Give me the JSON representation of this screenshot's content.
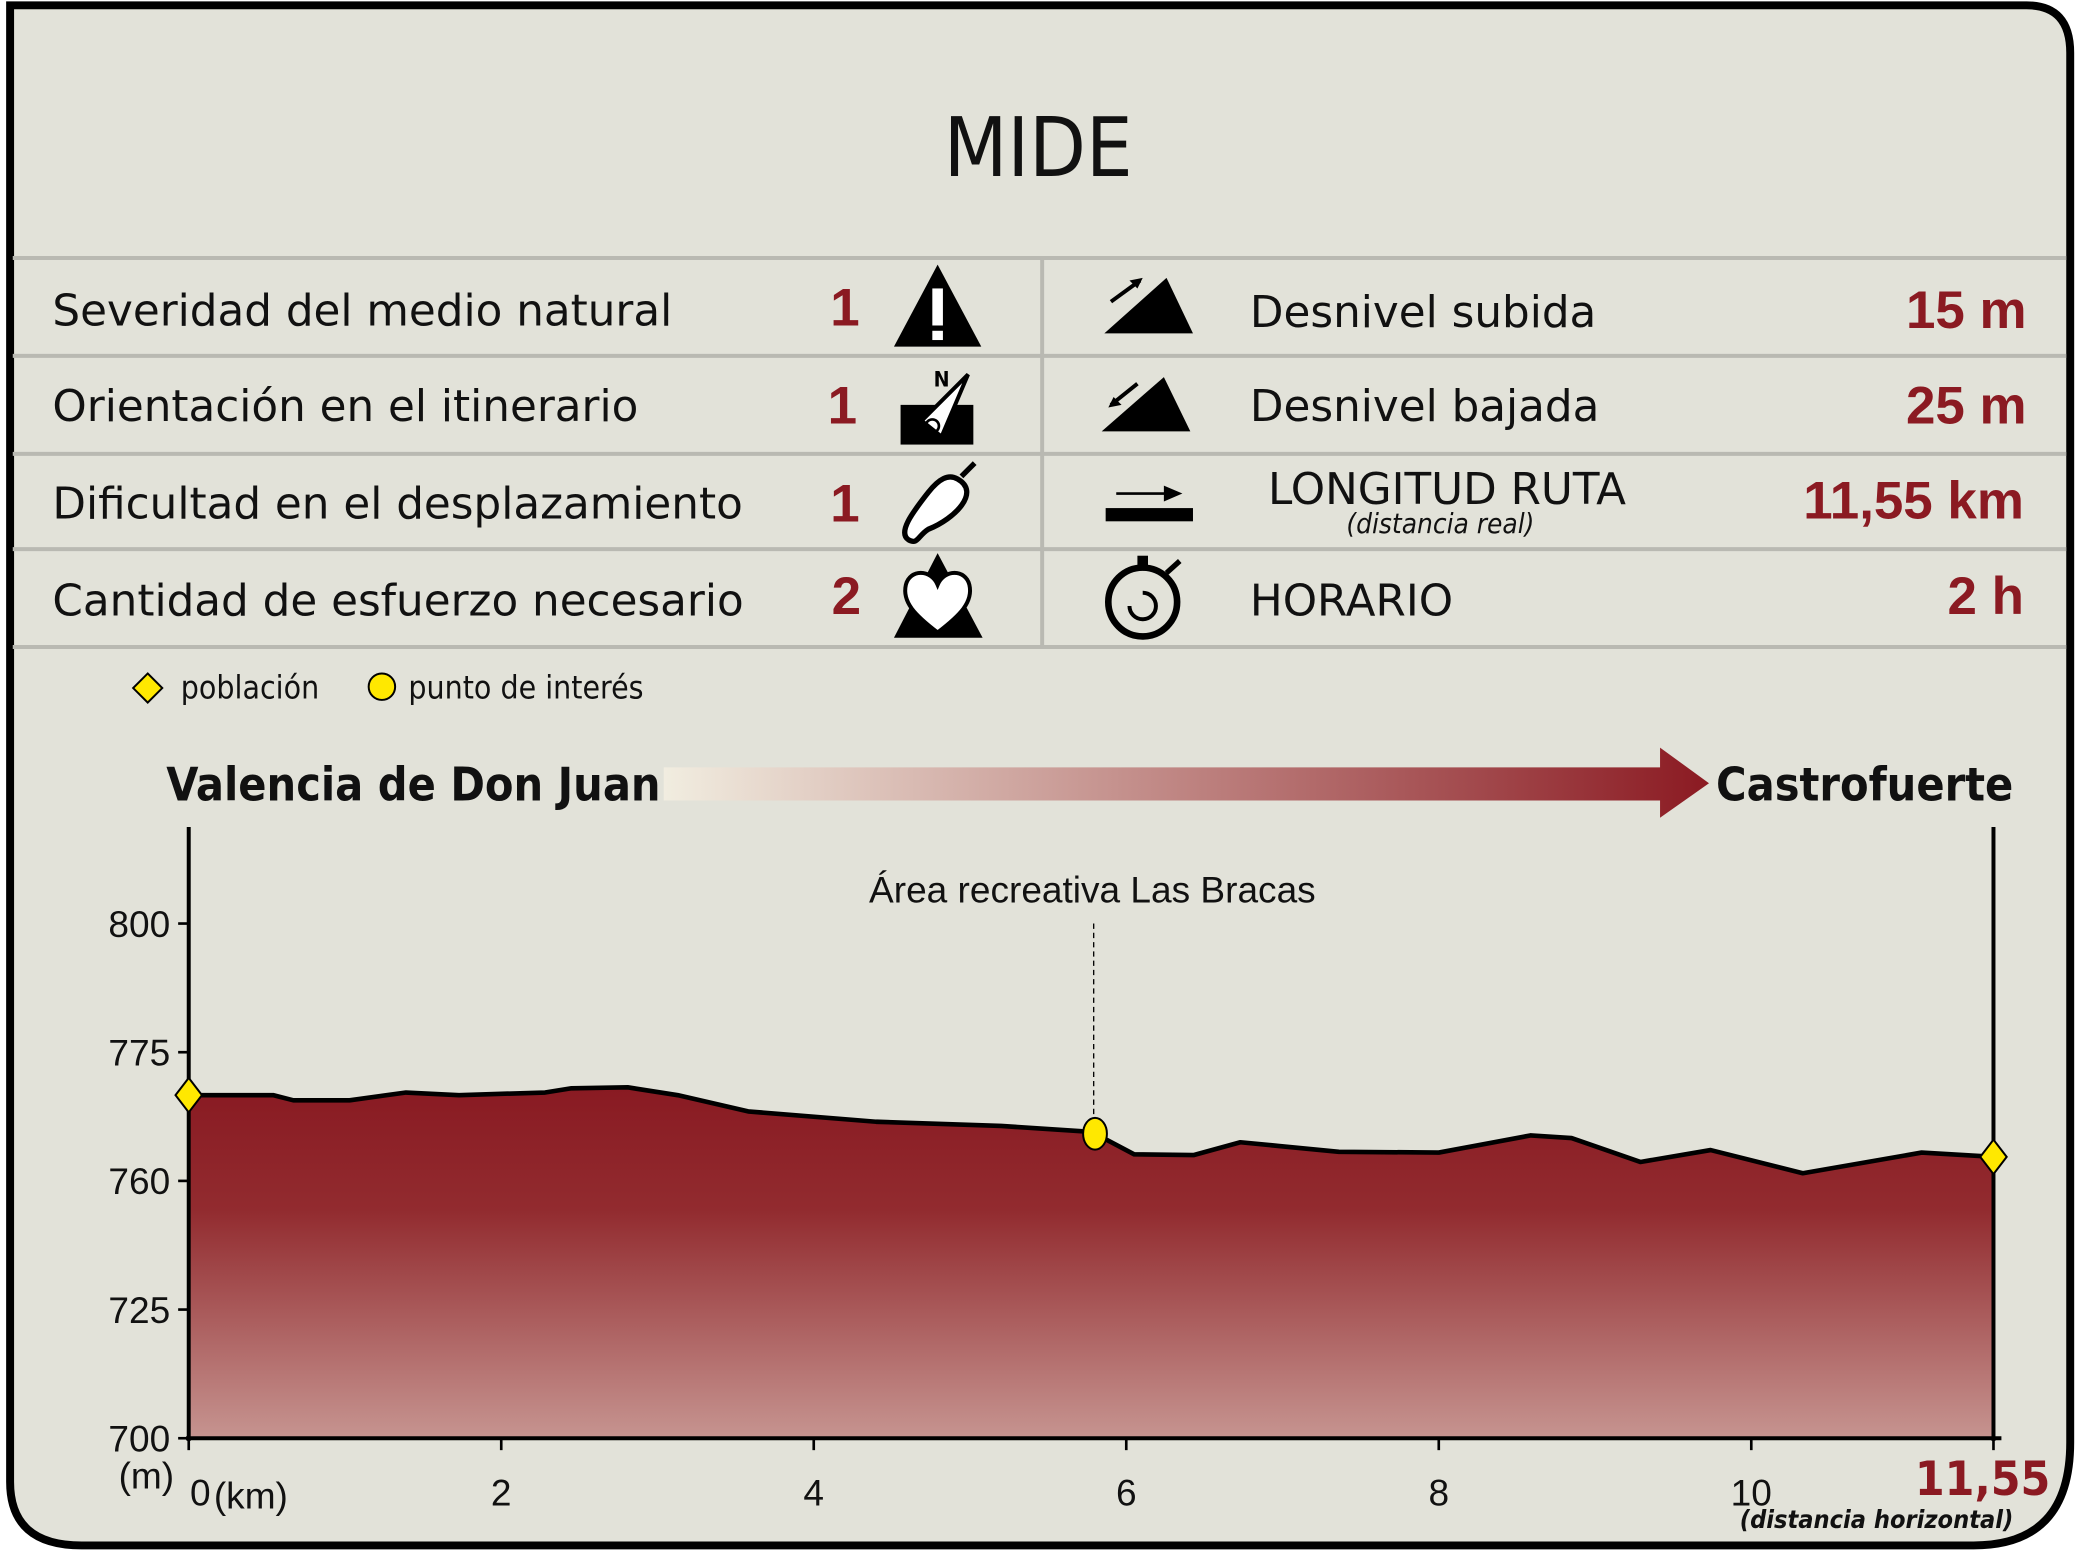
{
  "title": "MIDE",
  "colors": {
    "accent": "#8B1A22",
    "background": "#E2E2D9",
    "marker": "#FFE800"
  },
  "mide": [
    {
      "label": "Severidad del medio natural",
      "value": "1",
      "icon": "warning-mountain-icon"
    },
    {
      "label": "Orientación en el itinerario",
      "value": "1",
      "icon": "compass-north-icon"
    },
    {
      "label": "Dificultad en el desplazamiento",
      "value": "1",
      "icon": "footprint-icon"
    },
    {
      "label": "Cantidad de esfuerzo necesario",
      "value": "2",
      "icon": "heart-mountain-icon"
    }
  ],
  "stats": [
    {
      "label": "Desnivel subida",
      "value": "15 m",
      "icon": "ascent-icon"
    },
    {
      "label": "Desnivel bajada",
      "value": "25 m",
      "icon": "descent-icon"
    },
    {
      "label": "LONGITUD RUTA",
      "sublabel": "(distancia real)",
      "value": "11,55 km",
      "icon": "distance-arrow-icon"
    },
    {
      "label": "HORARIO",
      "value": "2 h",
      "icon": "stopwatch-icon"
    }
  ],
  "legend": {
    "town": "población",
    "poi": "punto de interés"
  },
  "route": {
    "start": "Valencia de Don Juan",
    "end": "Castrofuerte"
  },
  "chart_data": {
    "type": "area",
    "ylabel": "(m)",
    "xlabel": "(km)",
    "x_end_label": "11,55",
    "x_end_note": "(distancia horizontal)",
    "x_ticks": [
      "0",
      "2",
      "4",
      "6",
      "8",
      "10"
    ],
    "y_ticks": [
      700,
      725,
      760,
      775,
      800
    ],
    "xlim": [
      0,
      11.55
    ],
    "x": [
      0,
      0.54,
      0.67,
      1.03,
      1.39,
      1.73,
      2.28,
      2.45,
      2.81,
      3.13,
      3.58,
      4.4,
      5.2,
      5.71,
      5.8,
      6.05,
      6.43,
      6.73,
      7.36,
      8.0,
      8.59,
      8.85,
      9.29,
      9.74,
      10.33,
      11.09,
      11.55
    ],
    "y": [
      770.0,
      770.0,
      769.4,
      769.4,
      770.3,
      770.0,
      770.3,
      770.8,
      770.9,
      770.0,
      768.1,
      766.9,
      766.4,
      765.8,
      765.5,
      763.1,
      763.0,
      764.5,
      763.4,
      763.3,
      765.3,
      765.0,
      762.2,
      763.6,
      760.9,
      763.3,
      762.8
    ],
    "markers": [
      {
        "type": "población",
        "x": 0,
        "y": 770.0
      },
      {
        "type": "punto de interés",
        "x": 5.8,
        "y": 765.5,
        "label": "Área recreativa Las Bracas"
      },
      {
        "type": "población",
        "x": 11.55,
        "y": 762.8
      }
    ]
  }
}
